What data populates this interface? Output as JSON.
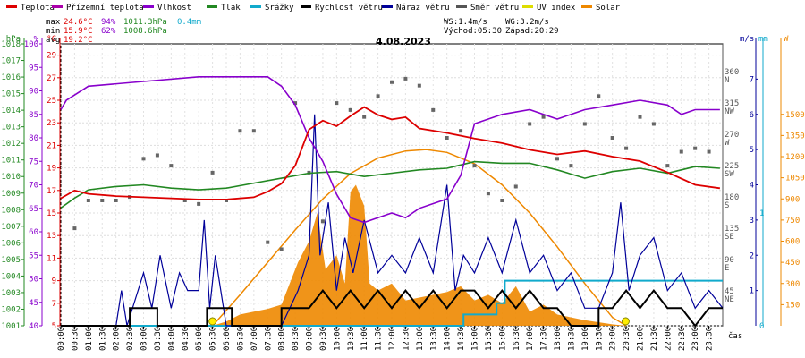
{
  "chart_data": {
    "type": "line",
    "title": "4.08.2023",
    "legend": [
      {
        "label": "Teplota",
        "color": "#dd0000"
      },
      {
        "label": "Přízemní teplota",
        "color": "#aa00aa"
      },
      {
        "label": "Vlhkost",
        "color": "#8800cc"
      },
      {
        "label": "Tlak",
        "color": "#228822"
      },
      {
        "label": "Srážky",
        "color": "#11aacc"
      },
      {
        "label": "Rychlost větru",
        "color": "#000000"
      },
      {
        "label": "Náraz větru",
        "color": "#000099"
      },
      {
        "label": "Směr větru",
        "color": "#555555"
      },
      {
        "label": "UV index",
        "color": "#dddd00"
      },
      {
        "label": "Solar",
        "color": "#ee8800"
      }
    ],
    "stats": {
      "max": {
        "label": "max",
        "temp": "24.6°C",
        "hum": "94%",
        "press": "1011.3hPa",
        "rain": "0.4mm"
      },
      "min": {
        "label": "min",
        "temp": "15.9°C",
        "hum": "62%",
        "press": "1008.6hPa"
      },
      "avg": {
        "label": "avg",
        "temp": "19.2°C"
      },
      "ws": "WS:1.4m/s",
      "wg": "WG:3.2m/s",
      "sunrise": "Východ:05:30",
      "sunset": "Západ:20:29"
    },
    "axes_left": {
      "hpa": {
        "unit": "hPa",
        "min": 1001,
        "max": 1018,
        "ticks": [
          "1001",
          "1002",
          "1003",
          "1004",
          "1005",
          "1006",
          "1007",
          "1008",
          "1009",
          "1010",
          "1011",
          "1012",
          "1013",
          "1014",
          "1015",
          "1016",
          "1017",
          "1018"
        ]
      },
      "pct": {
        "unit": "%",
        "min": 40,
        "max": 100,
        "ticks": [
          "40",
          "45",
          "50",
          "55",
          "60",
          "65",
          "70",
          "75",
          "80",
          "85",
          "90",
          "95",
          "100"
        ]
      },
      "temp": {
        "unit": "°C",
        "min": 5,
        "max": 30,
        "ticks": [
          "5",
          "7",
          "9",
          "11",
          "13",
          "15",
          "17",
          "19",
          "21",
          "23",
          "25",
          "27",
          "29"
        ]
      }
    },
    "axes_right": {
      "deg": {
        "unit": "°",
        "ticks": [
          {
            "v": "45",
            "d": "NE"
          },
          {
            "v": "90",
            "d": "E"
          },
          {
            "v": "135",
            "d": "SE"
          },
          {
            "v": "180",
            "d": "S"
          },
          {
            "v": "225",
            "d": "SW"
          },
          {
            "v": "270",
            "d": "W"
          },
          {
            "v": "315",
            "d": "NW"
          },
          {
            "v": "360",
            "d": "N"
          }
        ]
      },
      "ms": {
        "unit": "m/s",
        "min": 0,
        "max": 8,
        "ticks": [
          "1",
          "2",
          "3",
          "4",
          "5",
          "6",
          "7"
        ]
      },
      "mm": {
        "unit": "mm",
        "min": 0,
        "max": 1,
        "ticks": [
          "0",
          "1"
        ]
      },
      "w": {
        "unit": "W",
        "min": 0,
        "max": 2000,
        "ticks": [
          "150",
          "300",
          "450",
          "600",
          "750",
          "900",
          "1050",
          "1200",
          "1350",
          "1500"
        ]
      }
    },
    "x_label": "čas",
    "x_ticks": [
      "00:00",
      "00:30",
      "01:00",
      "01:30",
      "02:00",
      "02:30",
      "03:00",
      "03:30",
      "04:00",
      "04:30",
      "05:00",
      "05:30",
      "06:00",
      "06:30",
      "07:00",
      "07:30",
      "08:00",
      "08:30",
      "09:00",
      "09:30",
      "10:00",
      "10:30",
      "11:00",
      "11:30",
      "12:00",
      "12:30",
      "13:00",
      "13:30",
      "14:00",
      "14:30",
      "15:00",
      "15:30",
      "16:00",
      "16:30",
      "17:00",
      "17:30",
      "18:00",
      "18:30",
      "19:00",
      "19:30",
      "20:00",
      "20:30",
      "21:00",
      "21:30",
      "22:00",
      "22:30",
      "23:00",
      "23:30"
    ],
    "series": [
      {
        "name": "Teplota",
        "unit": "°C",
        "hours": [
          0,
          0.5,
          1,
          2,
          3,
          4,
          5,
          6,
          7,
          7.5,
          8,
          8.5,
          9,
          9.5,
          10,
          10.5,
          11,
          11.5,
          12,
          12.5,
          13,
          14,
          15,
          16,
          17,
          18,
          19,
          20,
          21,
          22,
          23,
          23.9
        ],
        "values": [
          16.3,
          17.0,
          16.7,
          16.5,
          16.4,
          16.3,
          16.2,
          16.2,
          16.4,
          16.9,
          17.6,
          19.2,
          22.4,
          23.2,
          22.7,
          23.6,
          24.4,
          23.7,
          23.3,
          23.5,
          22.5,
          22.1,
          21.6,
          21.2,
          20.6,
          20.2,
          20.5,
          20.0,
          19.6,
          18.6,
          17.5,
          17.2
        ]
      },
      {
        "name": "Vlhkost",
        "unit": "%",
        "hours": [
          0,
          0.2,
          1,
          3,
          5,
          6,
          7,
          7.5,
          8,
          8.5,
          9,
          9.5,
          10,
          10.5,
          11,
          11.5,
          12,
          12.5,
          13,
          13.5,
          14,
          14.5,
          15,
          16,
          17,
          18,
          19,
          20,
          21,
          22,
          22.5,
          23,
          23.9
        ],
        "values": [
          86,
          88,
          91,
          92,
          93,
          93,
          93,
          93,
          91,
          87,
          80,
          75,
          68,
          63,
          62,
          63,
          64,
          63,
          65,
          66,
          67,
          72,
          83,
          85,
          86,
          84,
          86,
          87,
          88,
          87,
          85,
          86,
          86
        ]
      },
      {
        "name": "Tlak",
        "unit": "hPa",
        "hours": [
          0,
          0.5,
          1,
          2,
          3,
          4,
          5,
          6,
          7,
          8,
          9,
          10,
          11,
          12,
          13,
          14,
          15,
          16,
          17,
          18,
          19,
          20,
          21,
          22,
          23,
          23.9
        ],
        "values": [
          1008.1,
          1008.7,
          1009.2,
          1009.4,
          1009.5,
          1009.3,
          1009.2,
          1009.3,
          1009.6,
          1009.9,
          1010.2,
          1010.3,
          1010.0,
          1010.2,
          1010.4,
          1010.5,
          1010.9,
          1010.8,
          1010.8,
          1010.4,
          1009.9,
          1010.3,
          1010.5,
          1010.2,
          1010.6,
          1010.5
        ]
      },
      {
        "name": "Srážky",
        "unit": "mm",
        "hours": [
          0,
          14.6,
          14.6,
          15.8,
          15.8,
          16.1,
          16.1,
          24
        ],
        "values": [
          0,
          0,
          0.1,
          0.1,
          0.2,
          0.2,
          0.4,
          0.4
        ]
      },
      {
        "name": "Rychlost větru",
        "unit": "m/s",
        "hours": [
          0,
          2.5,
          2.5,
          3.5,
          3.5,
          5.3,
          5.3,
          6.2,
          6.2,
          8,
          8,
          9,
          9.5,
          10,
          10.5,
          11,
          11.5,
          12,
          12.5,
          13,
          13.5,
          14,
          14.5,
          15,
          15.5,
          16,
          16.5,
          17,
          17.5,
          18,
          18.5,
          19.5,
          19.5,
          20,
          20.5,
          21,
          21.5,
          22,
          22.5,
          23,
          23.5,
          24
        ],
        "values": [
          0,
          0,
          0.5,
          0.5,
          0,
          0,
          0.5,
          0.5,
          0,
          0,
          0.5,
          0.5,
          1,
          0.5,
          1,
          0.5,
          1,
          0.5,
          1,
          0.5,
          1,
          0.5,
          1,
          1,
          0.5,
          1,
          0.5,
          1,
          0.5,
          0.5,
          0,
          0,
          0.5,
          0.5,
          1,
          0.5,
          1,
          0.5,
          0.5,
          0,
          0.5,
          0.5
        ]
      },
      {
        "name": "Náraz větru",
        "unit": "m/s",
        "hours": [
          0,
          2,
          2.2,
          2.4,
          3,
          3.3,
          3.6,
          4,
          4.3,
          4.6,
          5,
          5.2,
          5.4,
          5.6,
          6,
          7,
          8,
          8.6,
          9,
          9.2,
          9.4,
          9.7,
          10,
          10.3,
          10.6,
          11,
          11.5,
          12,
          12.5,
          13,
          13.5,
          14,
          14.3,
          14.6,
          15,
          15.5,
          16,
          16.5,
          17,
          17.5,
          18,
          18.5,
          19,
          19.5,
          20,
          20.3,
          20.6,
          21,
          21.5,
          22,
          22.5,
          23,
          23.5,
          24
        ],
        "values": [
          0,
          0,
          1,
          0,
          1.5,
          0.5,
          2,
          0.5,
          1.5,
          1,
          1,
          3,
          0.5,
          2,
          0,
          0,
          0,
          1,
          2,
          6,
          2,
          3.5,
          1,
          2.5,
          1.5,
          3,
          1.5,
          2,
          1.5,
          2.5,
          1.5,
          4,
          1,
          2,
          1.5,
          2.5,
          1.5,
          3,
          1.5,
          2,
          1,
          1.5,
          0.5,
          0.5,
          1.5,
          3.5,
          1,
          2,
          2.5,
          1,
          1.5,
          0.5,
          1,
          0.5
        ]
      },
      {
        "name": "Solar",
        "unit": "W",
        "hours": [
          5.5,
          6,
          6.5,
          7,
          7.5,
          8,
          8.3,
          8.6,
          9,
          9.3,
          9.6,
          10,
          10.3,
          10.5,
          10.7,
          11,
          11.2,
          11.5,
          12,
          12.5,
          13,
          13.5,
          14,
          14.5,
          15,
          15.5,
          16,
          16.5,
          17,
          17.5,
          18,
          19,
          20,
          20.5
        ],
        "values": [
          0,
          30,
          80,
          100,
          120,
          150,
          300,
          450,
          600,
          800,
          400,
          500,
          300,
          950,
          1000,
          850,
          300,
          250,
          300,
          180,
          200,
          220,
          240,
          280,
          180,
          220,
          160,
          280,
          100,
          150,
          80,
          40,
          10,
          0
        ]
      },
      {
        "name": "Solar (clear sky)",
        "unit": "W",
        "hours": [
          5.5,
          6.5,
          7.5,
          8.5,
          9.5,
          10.5,
          11.5,
          12.5,
          13.25,
          14,
          15,
          16,
          17,
          18,
          19,
          20,
          20.5
        ],
        "values": [
          0,
          220,
          450,
          680,
          900,
          1080,
          1190,
          1240,
          1250,
          1230,
          1150,
          1000,
          800,
          560,
          300,
          60,
          0
        ]
      },
      {
        "name": "Směr větru",
        "unit": "°",
        "hours": [
          0.5,
          1,
          1.5,
          2,
          2.5,
          3,
          3.5,
          4,
          4.5,
          5,
          5.5,
          6,
          6.5,
          7,
          7.5,
          8,
          8.5,
          9,
          9.5,
          10,
          10.5,
          11,
          11.5,
          12,
          12.5,
          13,
          13.5,
          14,
          14.5,
          15,
          15.5,
          16,
          16.5,
          17,
          17.5,
          18,
          18.5,
          19,
          19.5,
          20,
          20.5,
          21,
          21.5,
          22,
          22.5,
          23,
          23.5
        ],
        "values": [
          140,
          180,
          180,
          180,
          185,
          240,
          245,
          230,
          180,
          175,
          220,
          180,
          280,
          280,
          120,
          110,
          320,
          220,
          150,
          320,
          310,
          300,
          330,
          350,
          355,
          345,
          310,
          270,
          280,
          230,
          190,
          180,
          200,
          290,
          300,
          240,
          230,
          290,
          330,
          270,
          255,
          300,
          290,
          230,
          250,
          255,
          250
        ]
      }
    ]
  }
}
